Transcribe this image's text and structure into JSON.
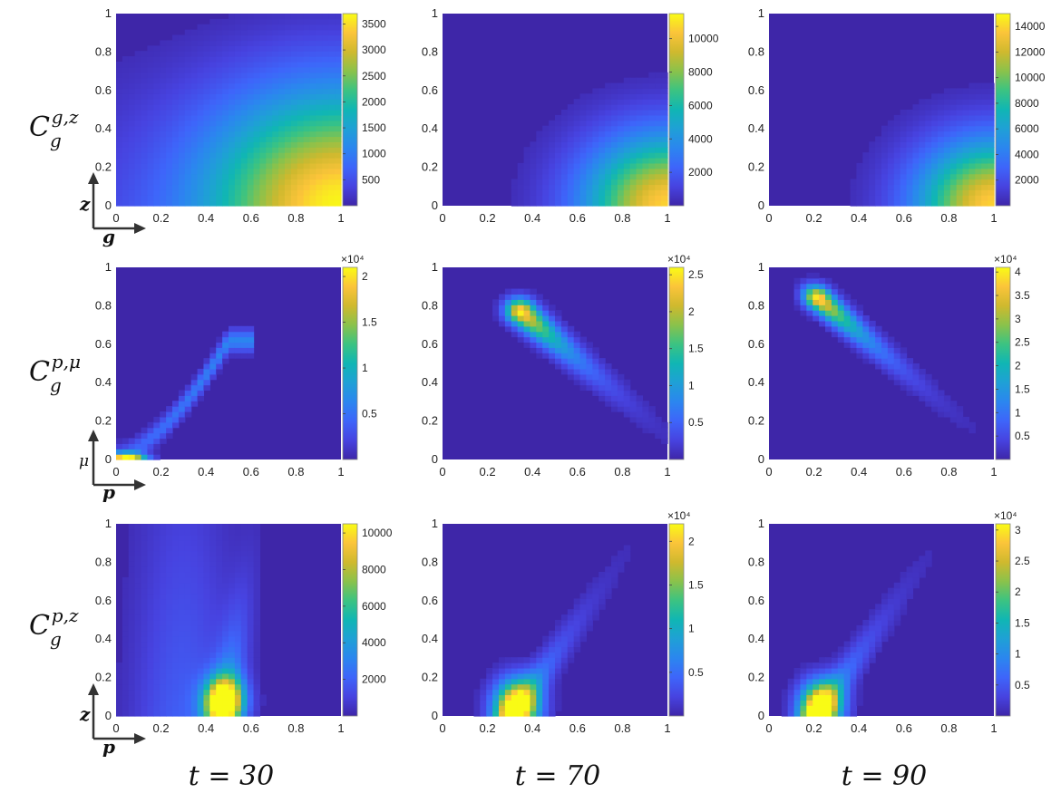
{
  "colormap": [
    "#3e26a8",
    "#4743e0",
    "#3e65fa",
    "#2b86ef",
    "#1fa0d6",
    "#10b6b4",
    "#3bc382",
    "#8ac24b",
    "#cfb92e",
    "#fbc43a",
    "#f9fb15"
  ],
  "axis_ticks": [
    "0",
    "0.2",
    "0.4",
    "0.6",
    "0.8",
    "1"
  ],
  "colorbar_scale_label": "×10⁴",
  "row_labels": [
    {
      "base": "C",
      "sub": "g",
      "sup": "g,z"
    },
    {
      "base": "C",
      "sub": "g",
      "sup": "p,μ"
    },
    {
      "base": "C",
      "sub": "g",
      "sup": "p,z"
    }
  ],
  "col_labels": [
    "t = 30",
    "t = 70",
    "t = 90"
  ],
  "corner_axes": [
    {
      "x": "g",
      "y": "z"
    },
    {
      "x": "p",
      "y": "μ"
    },
    {
      "x": "p",
      "y": "z"
    }
  ],
  "chart_data": [
    {
      "type": "heatmap",
      "row": 1,
      "col": 1,
      "xlabel": "g",
      "ylabel": "z",
      "xlim": [
        0,
        1
      ],
      "ylim": [
        0,
        1
      ],
      "clim": [
        0,
        3700
      ],
      "colorbar_ticks": [
        500,
        1000,
        1500,
        2000,
        2500,
        3000,
        3500
      ],
      "colorbar_scale": 1,
      "peak": [
        1.0,
        0.0,
        3700
      ],
      "spread": 0.42
    },
    {
      "type": "heatmap",
      "row": 1,
      "col": 2,
      "xlabel": "g",
      "ylabel": "z",
      "xlim": [
        0,
        1
      ],
      "ylim": [
        0,
        1
      ],
      "clim": [
        0,
        11500
      ],
      "colorbar_ticks": [
        2000,
        4000,
        6000,
        8000,
        10000
      ],
      "colorbar_scale": 1,
      "peak": [
        1.0,
        0.0,
        11500
      ],
      "spread": 0.26
    },
    {
      "type": "heatmap",
      "row": 1,
      "col": 3,
      "xlabel": "g",
      "ylabel": "z",
      "xlim": [
        0,
        1
      ],
      "ylim": [
        0,
        1
      ],
      "clim": [
        0,
        15000
      ],
      "colorbar_ticks": [
        2000,
        4000,
        6000,
        8000,
        10000,
        12000,
        14000
      ],
      "colorbar_scale": 1,
      "peak": [
        1.0,
        0.0,
        15000
      ],
      "spread": 0.24
    },
    {
      "type": "heatmap",
      "row": 2,
      "col": 1,
      "xlabel": "p",
      "ylabel": "μ",
      "xlim": [
        0,
        1
      ],
      "ylim": [
        0,
        1
      ],
      "clim": [
        0,
        2.1
      ],
      "colorbar_ticks": [
        0.5,
        1,
        1.5,
        2
      ],
      "colorbar_scale": 10000,
      "peak": [
        0.05,
        0.02,
        2.1
      ],
      "ridge": "rising",
      "spread": 0.05
    },
    {
      "type": "heatmap",
      "row": 2,
      "col": 2,
      "xlabel": "p",
      "ylabel": "μ",
      "xlim": [
        0,
        1
      ],
      "ylim": [
        0,
        1
      ],
      "clim": [
        0,
        2.6
      ],
      "colorbar_ticks": [
        0.5,
        1,
        1.5,
        2,
        2.5
      ],
      "colorbar_scale": 10000,
      "peak": [
        0.35,
        0.77,
        2.6
      ],
      "ridge": "falling",
      "spread": 0.045
    },
    {
      "type": "heatmap",
      "row": 2,
      "col": 3,
      "xlabel": "p",
      "ylabel": "μ",
      "xlim": [
        0,
        1
      ],
      "ylim": [
        0,
        1
      ],
      "clim": [
        0,
        4.1
      ],
      "colorbar_ticks": [
        0.5,
        1,
        1.5,
        2,
        2.5,
        3,
        3.5,
        4
      ],
      "colorbar_scale": 10000,
      "peak": [
        0.22,
        0.84,
        4.1
      ],
      "ridge": "falling",
      "spread": 0.04
    },
    {
      "type": "heatmap",
      "row": 3,
      "col": 1,
      "xlabel": "p",
      "ylabel": "z",
      "xlim": [
        0,
        1
      ],
      "ylim": [
        0,
        1
      ],
      "clim": [
        0,
        10500
      ],
      "colorbar_ticks": [
        2000,
        4000,
        6000,
        8000,
        10000
      ],
      "colorbar_scale": 1,
      "peak": [
        0.48,
        0.08,
        10500
      ],
      "spread": 0.06
    },
    {
      "type": "heatmap",
      "row": 3,
      "col": 2,
      "xlabel": "p",
      "ylabel": "z",
      "xlim": [
        0,
        1
      ],
      "ylim": [
        0,
        1
      ],
      "clim": [
        0,
        2.2
      ],
      "colorbar_ticks": [
        0.5,
        1,
        1.5,
        2
      ],
      "colorbar_scale": 10000,
      "peak": [
        0.33,
        0.05,
        2.2
      ],
      "spread": 0.07
    },
    {
      "type": "heatmap",
      "row": 3,
      "col": 3,
      "xlabel": "p",
      "ylabel": "z",
      "xlim": [
        0,
        1
      ],
      "ylim": [
        0,
        1
      ],
      "clim": [
        0,
        3.1
      ],
      "colorbar_ticks": [
        0.5,
        1,
        1.5,
        2,
        2.5,
        3
      ],
      "colorbar_scale": 10000,
      "peak": [
        0.23,
        0.05,
        3.1
      ],
      "spread": 0.065
    }
  ]
}
